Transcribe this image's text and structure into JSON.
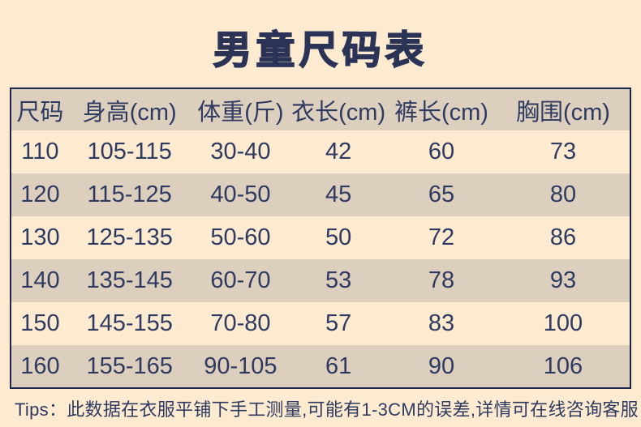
{
  "page": {
    "title": "男童尺码表",
    "tips": "Tips：此数据在衣服平铺下手工测量,可能有1-3CM的误差,详情可在线咨询客服",
    "colors": {
      "background": "#fdebd1",
      "row_stripe": "#dccfbe",
      "text": "#2f3a61",
      "title": "#2b3356",
      "table_border": "#1e2546"
    }
  },
  "size_table": {
    "columns": [
      "尺码",
      "身高(cm)",
      "体重(斤)",
      "衣长(cm)",
      "裤长(cm)",
      "胸围(cm)"
    ],
    "rows": [
      [
        "110",
        "105-115",
        "30-40",
        "42",
        "60",
        "73"
      ],
      [
        "120",
        "115-125",
        "40-50",
        "45",
        "65",
        "80"
      ],
      [
        "130",
        "125-135",
        "50-60",
        "50",
        "72",
        "86"
      ],
      [
        "140",
        "135-145",
        "60-70",
        "53",
        "78",
        "93"
      ],
      [
        "150",
        "145-155",
        "70-80",
        "57",
        "83",
        "100"
      ],
      [
        "160",
        "155-165",
        "90-105",
        "61",
        "90",
        "106"
      ]
    ]
  }
}
